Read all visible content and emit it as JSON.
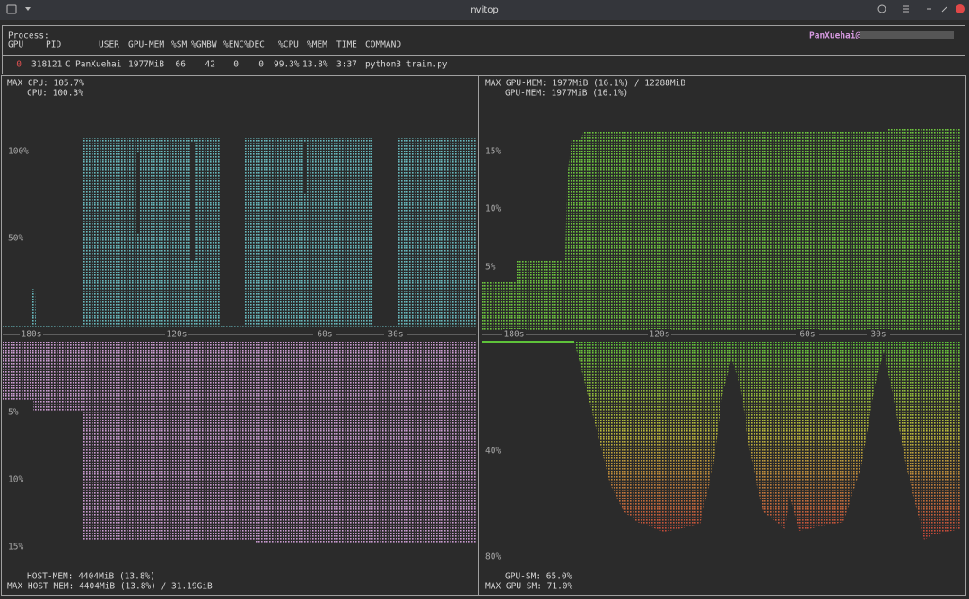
{
  "window": {
    "title": "nvitop"
  },
  "process": {
    "label": "Process:",
    "user_host": "PanXuehai@",
    "columns": [
      "GPU",
      "PID",
      "USER",
      "GPU-MEM",
      "%SM",
      "%GMBW",
      "%ENC",
      "%DEC",
      "%CPU",
      "%MEM",
      "TIME",
      "COMMAND"
    ],
    "rows": [
      [
        "0",
        "318121",
        "C",
        "PanXuehai",
        "1977MiB",
        "66",
        "42",
        "0",
        "0",
        "99.3%",
        "13.8%",
        "3:37",
        "python3 train.py"
      ]
    ]
  },
  "cpu_panel": {
    "max_label": "MAX CPU: 105.7%",
    "current_label": "CPU: 100.3%",
    "yticks": [
      "100%",
      "50%"
    ],
    "time_ticks": [
      "180s",
      "120s",
      "60s",
      "30s"
    ]
  },
  "host_mem_panel": {
    "yticks": [
      "5%",
      "10%",
      "15%"
    ],
    "current_label": "HOST-MEM: 4404MiB (13.8%)",
    "max_label": "MAX HOST-MEM: 4404MiB (13.8%) / 31.19GiB"
  },
  "gpu_mem_panel": {
    "max_label": "MAX GPU-MEM: 1977MiB (16.1%) / 12288MiB",
    "current_label": "GPU-MEM: 1977MiB (16.1%)",
    "yticks": [
      "15%",
      "10%",
      "5%"
    ],
    "time_ticks": [
      "180s",
      "120s",
      "60s",
      "30s"
    ]
  },
  "gpu_sm_panel": {
    "yticks": [
      "40%",
      "80%"
    ],
    "current_label": "GPU-SM: 65.0%",
    "max_label": "MAX GPU-SM: 71.0%"
  }
}
